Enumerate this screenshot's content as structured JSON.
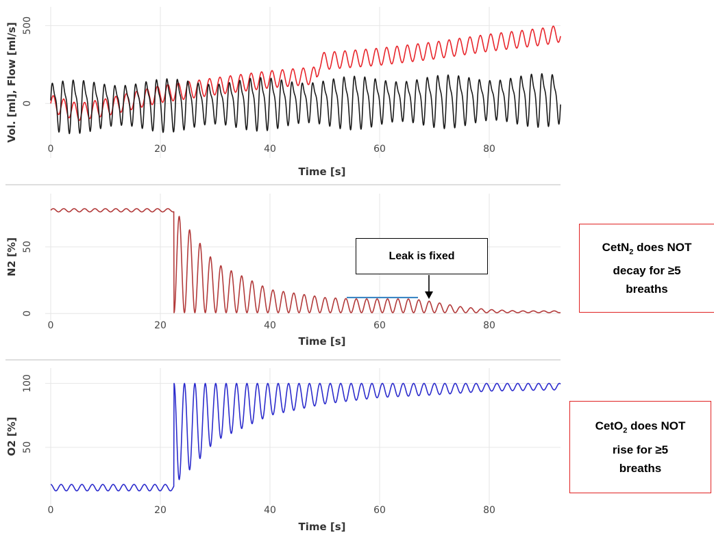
{
  "annotations": {
    "leak_label": "Leak is fixed",
    "note_n2": {
      "pre": "CetN",
      "sub": "2",
      "post": " does NOT",
      "line2": "decay for ≥5",
      "line3": "breaths"
    },
    "note_o2": {
      "pre": "CetO",
      "sub": "2",
      "post": " does NOT",
      "line2": "rise for ≥5",
      "line3": "breaths"
    }
  },
  "colors": {
    "volume": "#e8252b",
    "flow": "#1a1a1a",
    "n2": "#b23a3a",
    "o2": "#2b2bcc",
    "leak_line": "#2f7fc1",
    "note_border": "#e02020"
  },
  "chart_data": [
    {
      "type": "line",
      "title": "",
      "xlabel": "Time [s]",
      "ylabel": "Vol. [ml], Flow [ml/s]",
      "xlim": [
        -1,
        93
      ],
      "ylim": [
        -350,
        620
      ],
      "xticks": [
        "0",
        "20",
        "40",
        "60",
        "80"
      ],
      "yticks": [
        "0",
        "500"
      ],
      "grid": true,
      "series": [
        {
          "key": "volume",
          "shape": "drift_osc",
          "x": [
            0,
            5,
            10,
            20,
            30,
            40,
            48.5,
            49,
            60,
            70,
            80,
            90,
            93
          ],
          "baseline": [
            0,
            -55,
            -25,
            60,
            110,
            155,
            180,
            270,
            300,
            340,
            390,
            430,
            450
          ],
          "period": 1.9,
          "amplitude": 55
        },
        {
          "key": "flow",
          "shape": "breathing",
          "x": [
            0,
            93
          ],
          "center": [
            -5,
            40
          ],
          "period": 1.9,
          "amplitude": 175
        }
      ]
    },
    {
      "type": "line",
      "title": "",
      "xlabel": "Time [s]",
      "ylabel": "N2 [%]",
      "xlim": [
        -1,
        93
      ],
      "ylim": [
        -5,
        90
      ],
      "xticks": [
        "0",
        "20",
        "40",
        "60",
        "80"
      ],
      "yticks": [
        "0",
        "50"
      ],
      "grid": true,
      "series": [
        {
          "key": "n2",
          "shape": "washout",
          "step_x": 22.5,
          "plateau": 77.5,
          "peaks_x": [
            22.5,
            30,
            40,
            50,
            55,
            60,
            65,
            68,
            75,
            80,
            85,
            93
          ],
          "peaks_y": [
            78,
            38,
            18,
            12,
            11,
            11,
            11,
            10,
            5,
            3,
            2,
            2
          ],
          "period": 1.9
        }
      ],
      "marker": {
        "label": "Leak is fixed",
        "line_x": [
          54,
          67
        ],
        "line_y": 12,
        "arrow_x": 69
      }
    },
    {
      "type": "line",
      "title": "",
      "xlabel": "Time [s]",
      "ylabel": "O2 [%]",
      "xlim": [
        -1,
        93
      ],
      "ylim": [
        5,
        112
      ],
      "xticks": [
        "0",
        "20",
        "40",
        "60",
        "80"
      ],
      "yticks": [
        "50",
        "100"
      ],
      "grid": true,
      "series": [
        {
          "key": "o2",
          "shape": "washin",
          "step_x": 22.5,
          "pre_low": 16,
          "pre_high": 21,
          "high": 100,
          "troughs_x": [
            22.5,
            26,
            30,
            40,
            50,
            60,
            70,
            80,
            93
          ],
          "troughs_y": [
            21,
            35,
            55,
            75,
            84,
            89,
            91,
            94,
            95
          ],
          "period": 1.9
        }
      ]
    }
  ]
}
